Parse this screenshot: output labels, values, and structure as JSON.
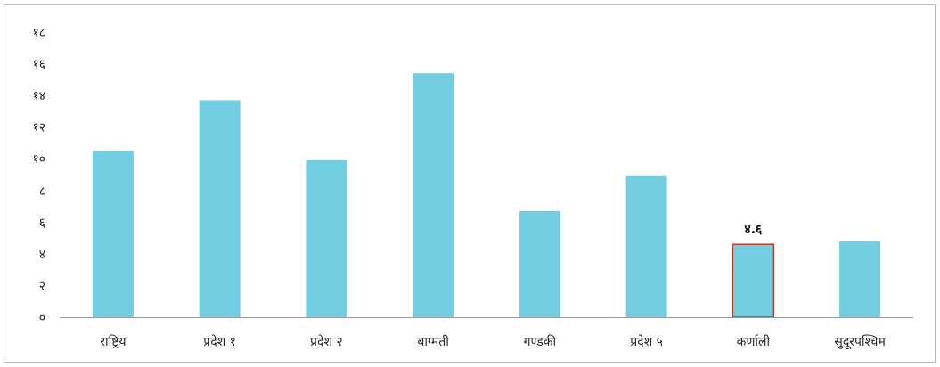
{
  "chart_data": {
    "type": "bar",
    "title": "",
    "xlabel": "",
    "ylabel": "",
    "ylim": [
      0,
      18
    ],
    "yticks": [
      {
        "value": 0,
        "label": "०"
      },
      {
        "value": 2,
        "label": "२"
      },
      {
        "value": 4,
        "label": "४"
      },
      {
        "value": 6,
        "label": "६"
      },
      {
        "value": 8,
        "label": "८"
      },
      {
        "value": 10,
        "label": "१०"
      },
      {
        "value": 12,
        "label": "१२"
      },
      {
        "value": 14,
        "label": "१४"
      },
      {
        "value": 16,
        "label": "१६"
      },
      {
        "value": 18,
        "label": "१८"
      }
    ],
    "categories": [
      "राष्ट्रिय",
      "प्रदेश १",
      "प्रदेश २",
      "बाग्मती",
      "गण्डकी",
      "प्रदेश ५",
      "कर्णाली",
      "सुदूरपश्चिम"
    ],
    "values": [
      10.5,
      13.7,
      9.9,
      15.4,
      6.7,
      8.9,
      4.6,
      4.8
    ],
    "highlight_index": 6,
    "data_labels": {
      "6": "४.६"
    },
    "grid": false,
    "legend": "none",
    "colors": {
      "bar": "#73cde1",
      "highlight_border": "#c0392b",
      "axis": "#9a9a9a",
      "frame": "#b8b8b8"
    }
  }
}
